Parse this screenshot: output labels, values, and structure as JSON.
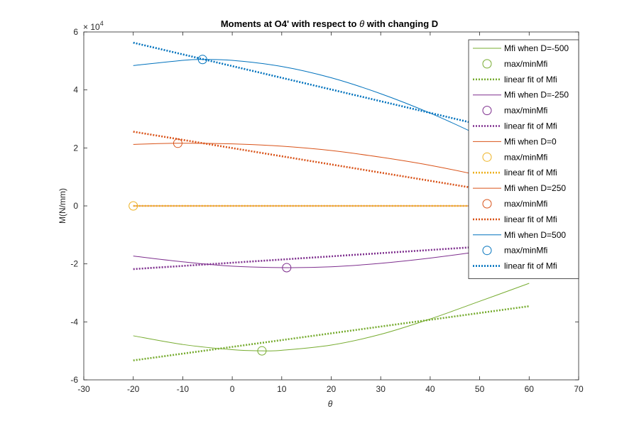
{
  "chart_data": {
    "type": "line",
    "title_prefix": "Moments at O4' with respect to ",
    "title_symbol": "θ",
    "title_suffix": " with changing D",
    "xlabel": "θ",
    "ylabel": "M(N/mm)",
    "exponent_label": "× 10",
    "exponent_power": "4",
    "xlim": [
      -30,
      70
    ],
    "ylim": [
      -6,
      6
    ],
    "x_ticks": [
      -30,
      -20,
      -10,
      0,
      10,
      20,
      30,
      40,
      50,
      60,
      70
    ],
    "y_ticks": [
      -6,
      -4,
      -2,
      0,
      2,
      4,
      6
    ],
    "y_scale_factor": 10000,
    "legend_position": "top-right",
    "colors": {
      "green": "#77AC30",
      "purple": "#7E2F8E",
      "red": "#D95319",
      "yellow": "#EDB120",
      "blue": "#0072BD"
    },
    "series": [
      {
        "name": "Mfi when D=-500",
        "color": "#77AC30",
        "x": [
          -20,
          -10,
          0,
          6,
          10,
          20,
          30,
          40,
          50,
          60
        ],
        "y": [
          -4.48,
          -4.78,
          -4.96,
          -5.0,
          -4.98,
          -4.8,
          -4.43,
          -3.9,
          -3.29,
          -2.67
        ],
        "max_min": {
          "name": "max/minMfi",
          "x": 6,
          "y": -5.0
        },
        "fit": {
          "name": "linear fit of Mfi",
          "x": [
            -20,
            60
          ],
          "y": [
            -5.33,
            -3.46
          ]
        }
      },
      {
        "name": "Mfi when D=-250",
        "color": "#7E2F8E",
        "x": [
          -20,
          -10,
          0,
          11,
          20,
          30,
          40,
          50,
          60
        ],
        "y": [
          -1.73,
          -1.93,
          -2.08,
          -2.13,
          -2.1,
          -1.98,
          -1.8,
          -1.57,
          -1.3
        ],
        "max_min": {
          "name": "max/minMfi",
          "x": 11,
          "y": -2.13
        },
        "fit": {
          "name": "linear fit of Mfi",
          "x": [
            -20,
            60
          ],
          "y": [
            -2.18,
            -1.3
          ]
        }
      },
      {
        "name": "Mfi when D=0",
        "color": "#D95319",
        "x": [
          -20,
          0,
          20,
          40,
          60
        ],
        "y": [
          0,
          0,
          0,
          0,
          0
        ],
        "max_min": {
          "name": "max/minMfi",
          "x": -20,
          "y": 0,
          "color": "#EDB120"
        },
        "fit": {
          "name": "linear fit of Mfi",
          "x": [
            -20,
            60
          ],
          "y": [
            0,
            0
          ],
          "color": "#EDB120"
        }
      },
      {
        "name": "Mfi when D=250",
        "color": "#D95319",
        "x": [
          -20,
          -11,
          0,
          10,
          20,
          30,
          40,
          50,
          60
        ],
        "y": [
          2.12,
          2.16,
          2.14,
          2.06,
          1.91,
          1.68,
          1.4,
          1.05,
          0.65
        ],
        "max_min": {
          "name": "max/minMfi",
          "x": -11,
          "y": 2.16
        },
        "fit": {
          "name": "linear fit of Mfi",
          "x": [
            -20,
            60
          ],
          "y": [
            2.56,
            0.3
          ]
        }
      },
      {
        "name": "Mfi when D=500",
        "color": "#0072BD",
        "x": [
          -20,
          -10,
          -6,
          0,
          10,
          20,
          30,
          40,
          50,
          60
        ],
        "y": [
          4.84,
          5.02,
          5.05,
          5.02,
          4.81,
          4.42,
          3.87,
          3.2,
          2.42,
          1.55
        ],
        "max_min": {
          "name": "max/minMfi",
          "x": -6,
          "y": 5.05
        },
        "fit": {
          "name": "linear fit of Mfi",
          "x": [
            -20,
            60
          ],
          "y": [
            5.63,
            2.4
          ]
        }
      }
    ]
  }
}
